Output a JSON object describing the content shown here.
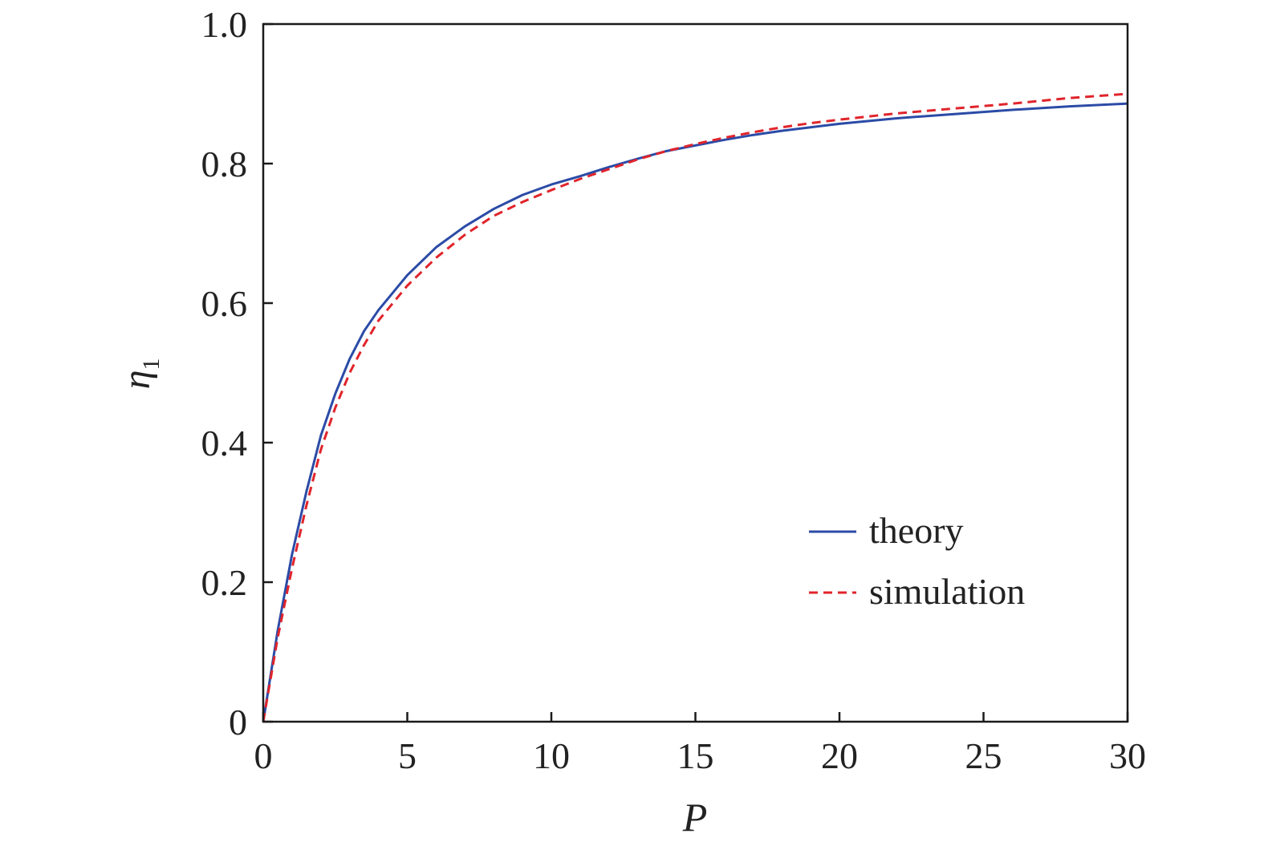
{
  "chart_data": {
    "type": "line",
    "xlabel": "P",
    "ylabel": {
      "main": "η",
      "sub": "1"
    },
    "xlim": [
      0,
      30
    ],
    "ylim": [
      0,
      1.0
    ],
    "xticks": [
      0,
      5,
      10,
      15,
      20,
      25,
      30
    ],
    "xtick_labels": [
      "0",
      "5",
      "10",
      "15",
      "20",
      "25",
      "30"
    ],
    "yticks": [
      0,
      0.2,
      0.4,
      0.6,
      0.8,
      1.0
    ],
    "ytick_labels": [
      "0",
      "0.2",
      "0.4",
      "0.6",
      "0.8",
      "1.0"
    ],
    "grid": false,
    "legend_position": "lower-right",
    "series": [
      {
        "name": "theory",
        "color": "#2b4ba6",
        "style": "solid",
        "x": [
          0,
          0.5,
          1,
          1.5,
          2,
          2.5,
          3,
          3.5,
          4,
          5,
          6,
          7,
          8,
          9,
          10,
          11,
          12,
          13,
          14,
          15,
          16,
          17,
          18,
          19,
          20,
          22,
          24,
          26,
          28,
          30
        ],
        "y": [
          0,
          0.13,
          0.24,
          0.33,
          0.41,
          0.47,
          0.52,
          0.56,
          0.59,
          0.64,
          0.68,
          0.71,
          0.735,
          0.755,
          0.77,
          0.782,
          0.795,
          0.807,
          0.818,
          0.826,
          0.834,
          0.841,
          0.847,
          0.852,
          0.857,
          0.865,
          0.871,
          0.877,
          0.882,
          0.886
        ]
      },
      {
        "name": "simulation",
        "color": "#e0242b",
        "style": "dashed",
        "x": [
          0,
          0.5,
          1,
          1.5,
          2,
          2.5,
          3,
          3.5,
          4,
          5,
          6,
          7,
          8,
          9,
          10,
          11,
          12,
          13,
          14,
          15,
          16,
          17,
          18,
          19,
          20,
          22,
          24,
          26,
          28,
          30
        ],
        "y": [
          0,
          0.12,
          0.22,
          0.31,
          0.39,
          0.45,
          0.5,
          0.54,
          0.575,
          0.625,
          0.665,
          0.698,
          0.725,
          0.745,
          0.762,
          0.778,
          0.792,
          0.806,
          0.818,
          0.828,
          0.837,
          0.845,
          0.852,
          0.858,
          0.863,
          0.872,
          0.879,
          0.886,
          0.894,
          0.9
        ]
      }
    ]
  }
}
